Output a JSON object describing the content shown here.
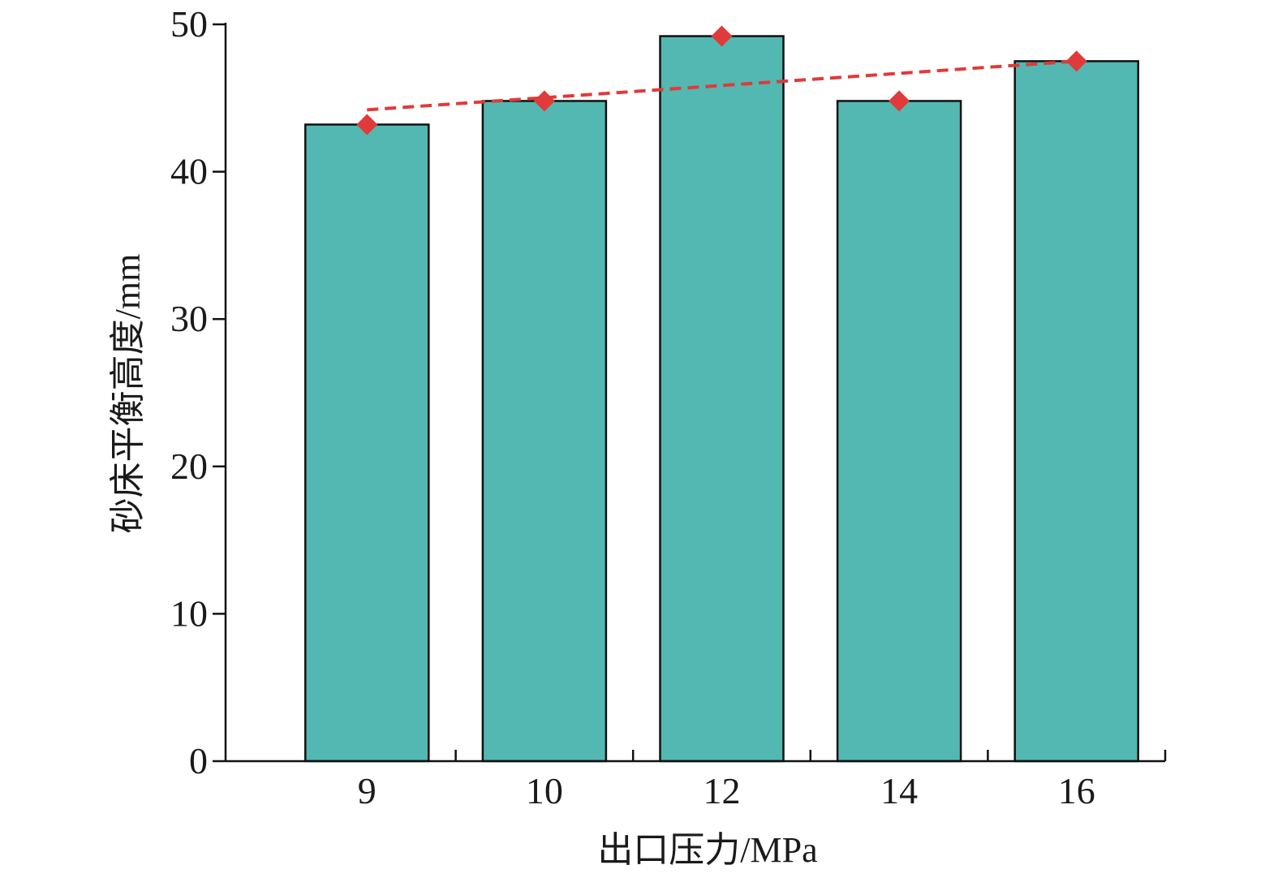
{
  "chart_data": {
    "type": "bar",
    "title": "",
    "xlabel": "出口压力/MPa",
    "ylabel": "砂床平衡高度/mm",
    "categories": [
      "9",
      "10",
      "12",
      "14",
      "16"
    ],
    "values": [
      43.2,
      44.8,
      49.2,
      44.8,
      47.5
    ],
    "ylim": [
      0,
      50
    ],
    "yticks": [
      "0",
      "10",
      "20",
      "30",
      "40",
      "50"
    ],
    "grid": false,
    "legend": "none",
    "overlay": {
      "type": "scatter",
      "marker": "diamond",
      "values": [
        43.2,
        44.8,
        49.2,
        44.8,
        47.5
      ],
      "trendline": {
        "type": "linear",
        "style": "dashed",
        "start": 44.2,
        "end": 47.5
      }
    },
    "colors": {
      "bar_fill": "#52b8b1",
      "bar_edge": "#111111",
      "marker": "#e03a3a",
      "trendline": "#e03a3a"
    }
  }
}
